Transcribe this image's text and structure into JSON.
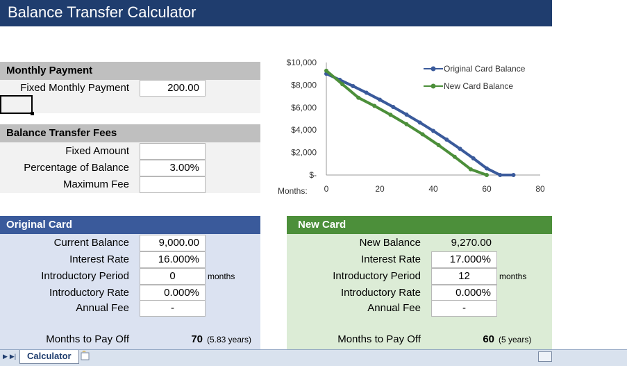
{
  "app": {
    "title": "Balance Transfer Calculator"
  },
  "monthly_payment": {
    "header": "Monthly Payment",
    "fixed_label": "Fixed Monthly Payment",
    "fixed_value": "200.00"
  },
  "fees": {
    "header": "Balance Transfer Fees",
    "fixed_amount_label": "Fixed Amount",
    "fixed_amount_value": "",
    "pct_label": "Percentage of Balance",
    "pct_value": "3.00%",
    "max_fee_label": "Maximum Fee",
    "max_fee_value": ""
  },
  "original_card": {
    "header": "Original Card",
    "balance_label": "Current Balance",
    "balance_value": "9,000.00",
    "rate_label": "Interest Rate",
    "rate_value": "16.000%",
    "intro_period_label": "Introductory Period",
    "intro_period_value": "0",
    "intro_period_unit": "months",
    "intro_rate_label": "Introductory Rate",
    "intro_rate_value": "0.000%",
    "annual_fee_label": "Annual Fee",
    "annual_fee_value": "-",
    "payoff_label": "Months to Pay Off",
    "payoff_months": "70",
    "payoff_years": "(5.83 years)"
  },
  "new_card": {
    "header": "New Card",
    "balance_label": "New Balance",
    "balance_value": "9,270.00",
    "rate_label": "Interest Rate",
    "rate_value": "17.000%",
    "intro_period_label": "Introductory Period",
    "intro_period_value": "12",
    "intro_period_unit": "months",
    "intro_rate_label": "Introductory Rate",
    "intro_rate_value": "0.000%",
    "annual_fee_label": "Annual Fee",
    "annual_fee_value": "-",
    "payoff_label": "Months to Pay Off",
    "payoff_months": "60",
    "payoff_years": "(5 years)"
  },
  "sheet_tabs": {
    "active": "Calculator"
  },
  "icons": {
    "tab_first": "tab-nav-first-icon",
    "tab_last": "tab-nav-last-icon",
    "insert_sheet": "insert-sheet-icon"
  },
  "chart_data": {
    "type": "line",
    "title": "",
    "xlabel": "Months:",
    "ylabel": "",
    "xlim": [
      0,
      80
    ],
    "ylim": [
      0,
      10000
    ],
    "x_ticks": [
      "0",
      "20",
      "40",
      "60",
      "80"
    ],
    "y_ticks": [
      "$-",
      "$2,000",
      "$4,000",
      "$6,000",
      "$8,000",
      "$10,000"
    ],
    "legend_position": "top-right",
    "grid": false,
    "series": [
      {
        "name": "Original Card Balance",
        "color": "#3a5a9b",
        "x": [
          0,
          5,
          10,
          15,
          20,
          25,
          30,
          35,
          40,
          45,
          50,
          55,
          60,
          65,
          70
        ],
        "values": [
          9000,
          8463,
          7900,
          7311,
          6695,
          6049,
          5373,
          4664,
          3922,
          3145,
          2332,
          1480,
          588,
          0,
          0
        ]
      },
      {
        "name": "New Card Balance",
        "color": "#4c8f3a",
        "x": [
          0,
          6,
          12,
          18,
          24,
          30,
          36,
          42,
          48,
          54,
          60
        ],
        "values": [
          9270,
          8070,
          6870,
          6139,
          5355,
          4516,
          3616,
          2652,
          1619,
          511,
          0
        ]
      }
    ]
  }
}
